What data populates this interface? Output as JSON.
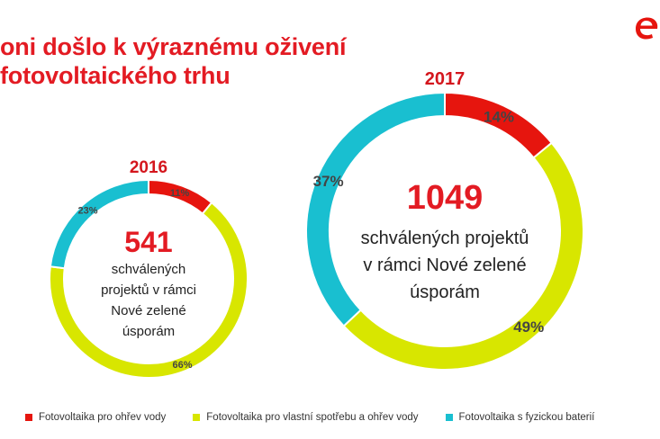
{
  "header": {
    "title": "oni došlo k výraznému oživení\nfotovoltaického trhu"
  },
  "colors": {
    "red": "#e6150e",
    "yellow": "#d8e600",
    "teal": "#19bfd0",
    "title_red": "#e31b23",
    "logo": "#e6150e"
  },
  "logo": {
    "icon": "brand-e-logo-icon"
  },
  "legend": [
    {
      "label": "Fotovoltaika pro ohřev vody",
      "color": "#e6150e"
    },
    {
      "label": "Fotovoltaika pro vlastní spotřebu a ohřev vody",
      "color": "#d8e600"
    },
    {
      "label": "Fotovoltaika s fyzickou baterií",
      "color": "#19bfd0"
    }
  ],
  "chart_data": [
    {
      "type": "pie",
      "donut": true,
      "title": "2016",
      "center_value": "541",
      "center_text": "schválených\nprojektů v rámci\nNové zelené\núsporám",
      "slices": [
        {
          "name": "Fotovoltaika pro ohřev vody",
          "value": 11,
          "label": "11%",
          "color": "#e6150e"
        },
        {
          "name": "Fotovoltaika pro vlastní spotřebu a ohřev vody",
          "value": 66,
          "label": "66%",
          "color": "#d8e600"
        },
        {
          "name": "Fotovoltaika s fyzickou baterií",
          "value": 23,
          "label": "23%",
          "color": "#19bfd0"
        }
      ]
    },
    {
      "type": "pie",
      "donut": true,
      "title": "2017",
      "center_value": "1049",
      "center_text": "schválených projektů\nv rámci Nové zelené\núsporám",
      "slices": [
        {
          "name": "Fotovoltaika pro ohřev vody",
          "value": 14,
          "label": "14%",
          "color": "#e6150e"
        },
        {
          "name": "Fotovoltaika pro vlastní spotřebu a ohřev vody",
          "value": 49,
          "label": "49%",
          "color": "#d8e600"
        },
        {
          "name": "Fotovoltaika s fyzickou baterií",
          "value": 37,
          "label": "37%",
          "color": "#19bfd0"
        }
      ]
    }
  ]
}
